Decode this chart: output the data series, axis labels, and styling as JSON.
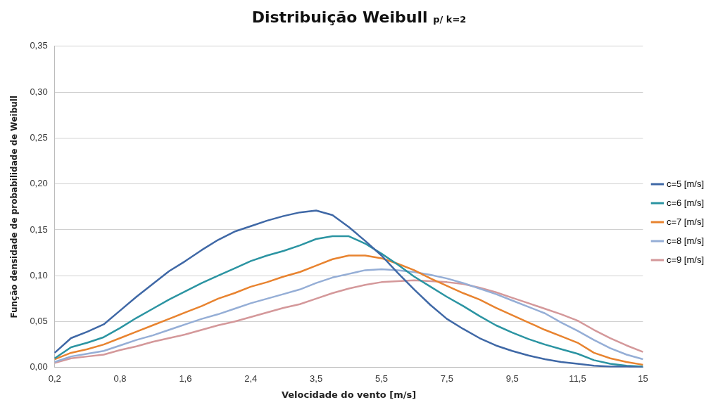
{
  "chart_data": {
    "type": "line",
    "title": "Distribuição Weibull $_{p/ k=2}$",
    "xlabel": "Velocidade do vento [m/s]",
    "ylabel": "Função densidade de probabilidade de Weibull",
    "categories": [
      "0,2",
      null,
      null,
      null,
      "0,8",
      null,
      null,
      null,
      "1,6",
      null,
      null,
      null,
      "2,4",
      null,
      null,
      null,
      "3,5",
      null,
      null,
      null,
      "5,5",
      null,
      null,
      null,
      "7,5",
      null,
      null,
      null,
      "9,5",
      null,
      null,
      null,
      "11,5",
      null,
      null,
      null,
      "15"
    ],
    "series": [
      {
        "name": "c=5 [m/s]",
        "color": "#3f68a6",
        "values": [
          0.016,
          0.032,
          0.039,
          0.047,
          0.062,
          0.077,
          0.091,
          0.105,
          0.116,
          0.128,
          0.139,
          0.148,
          0.154,
          0.16,
          0.165,
          0.169,
          0.171,
          0.166,
          0.153,
          0.138,
          0.122,
          0.103,
          0.085,
          0.068,
          0.053,
          0.042,
          0.032,
          0.024,
          0.018,
          0.013,
          0.009,
          0.006,
          0.004,
          0.002,
          0.001,
          0.001,
          0.0
        ]
      },
      {
        "name": "c=6 [m/s]",
        "color": "#2b94a2",
        "values": [
          0.01,
          0.022,
          0.027,
          0.033,
          0.043,
          0.054,
          0.064,
          0.074,
          0.083,
          0.092,
          0.1,
          0.108,
          0.116,
          0.122,
          0.127,
          0.133,
          0.14,
          0.143,
          0.143,
          0.135,
          0.124,
          0.112,
          0.099,
          0.088,
          0.077,
          0.067,
          0.056,
          0.046,
          0.038,
          0.031,
          0.025,
          0.02,
          0.015,
          0.008,
          0.004,
          0.002,
          0.001
        ]
      },
      {
        "name": "c=7 [m/s]",
        "color": "#e8832f",
        "values": [
          0.009,
          0.016,
          0.02,
          0.025,
          0.032,
          0.039,
          0.046,
          0.053,
          0.06,
          0.067,
          0.075,
          0.081,
          0.088,
          0.093,
          0.099,
          0.104,
          0.111,
          0.118,
          0.122,
          0.122,
          0.119,
          0.113,
          0.106,
          0.097,
          0.089,
          0.081,
          0.074,
          0.065,
          0.057,
          0.049,
          0.041,
          0.034,
          0.027,
          0.016,
          0.01,
          0.006,
          0.003
        ]
      },
      {
        "name": "c=8 [m/s]",
        "color": "#95aed6",
        "values": [
          0.006,
          0.012,
          0.015,
          0.018,
          0.024,
          0.03,
          0.035,
          0.041,
          0.047,
          0.053,
          0.058,
          0.064,
          0.07,
          0.075,
          0.08,
          0.085,
          0.092,
          0.098,
          0.102,
          0.106,
          0.107,
          0.106,
          0.104,
          0.101,
          0.097,
          0.092,
          0.086,
          0.08,
          0.073,
          0.066,
          0.059,
          0.049,
          0.04,
          0.03,
          0.021,
          0.014,
          0.009
        ]
      },
      {
        "name": "c=9 [m/s]",
        "color": "#d4989a",
        "values": [
          0.005,
          0.01,
          0.012,
          0.014,
          0.019,
          0.023,
          0.028,
          0.032,
          0.036,
          0.041,
          0.046,
          0.05,
          0.055,
          0.06,
          0.065,
          0.069,
          0.075,
          0.081,
          0.086,
          0.09,
          0.093,
          0.094,
          0.095,
          0.094,
          0.093,
          0.091,
          0.087,
          0.082,
          0.076,
          0.07,
          0.064,
          0.058,
          0.051,
          0.041,
          0.032,
          0.024,
          0.017
        ]
      }
    ],
    "ylim": [
      0,
      0.35
    ],
    "yticks": [
      {
        "value": 0,
        "label": "0,00"
      },
      {
        "value": 0.05,
        "label": "0,05"
      },
      {
        "value": 0.1,
        "label": "0,10"
      },
      {
        "value": 0.15,
        "label": "0,15"
      },
      {
        "value": 0.2,
        "label": "0,20"
      },
      {
        "value": 0.25,
        "label": "0,25"
      },
      {
        "value": 0.3,
        "label": "0,30"
      },
      {
        "value": 0.35,
        "label": "0,35"
      }
    ],
    "grid": "y",
    "legend": "right",
    "marker": "none",
    "line_style": "solid"
  }
}
